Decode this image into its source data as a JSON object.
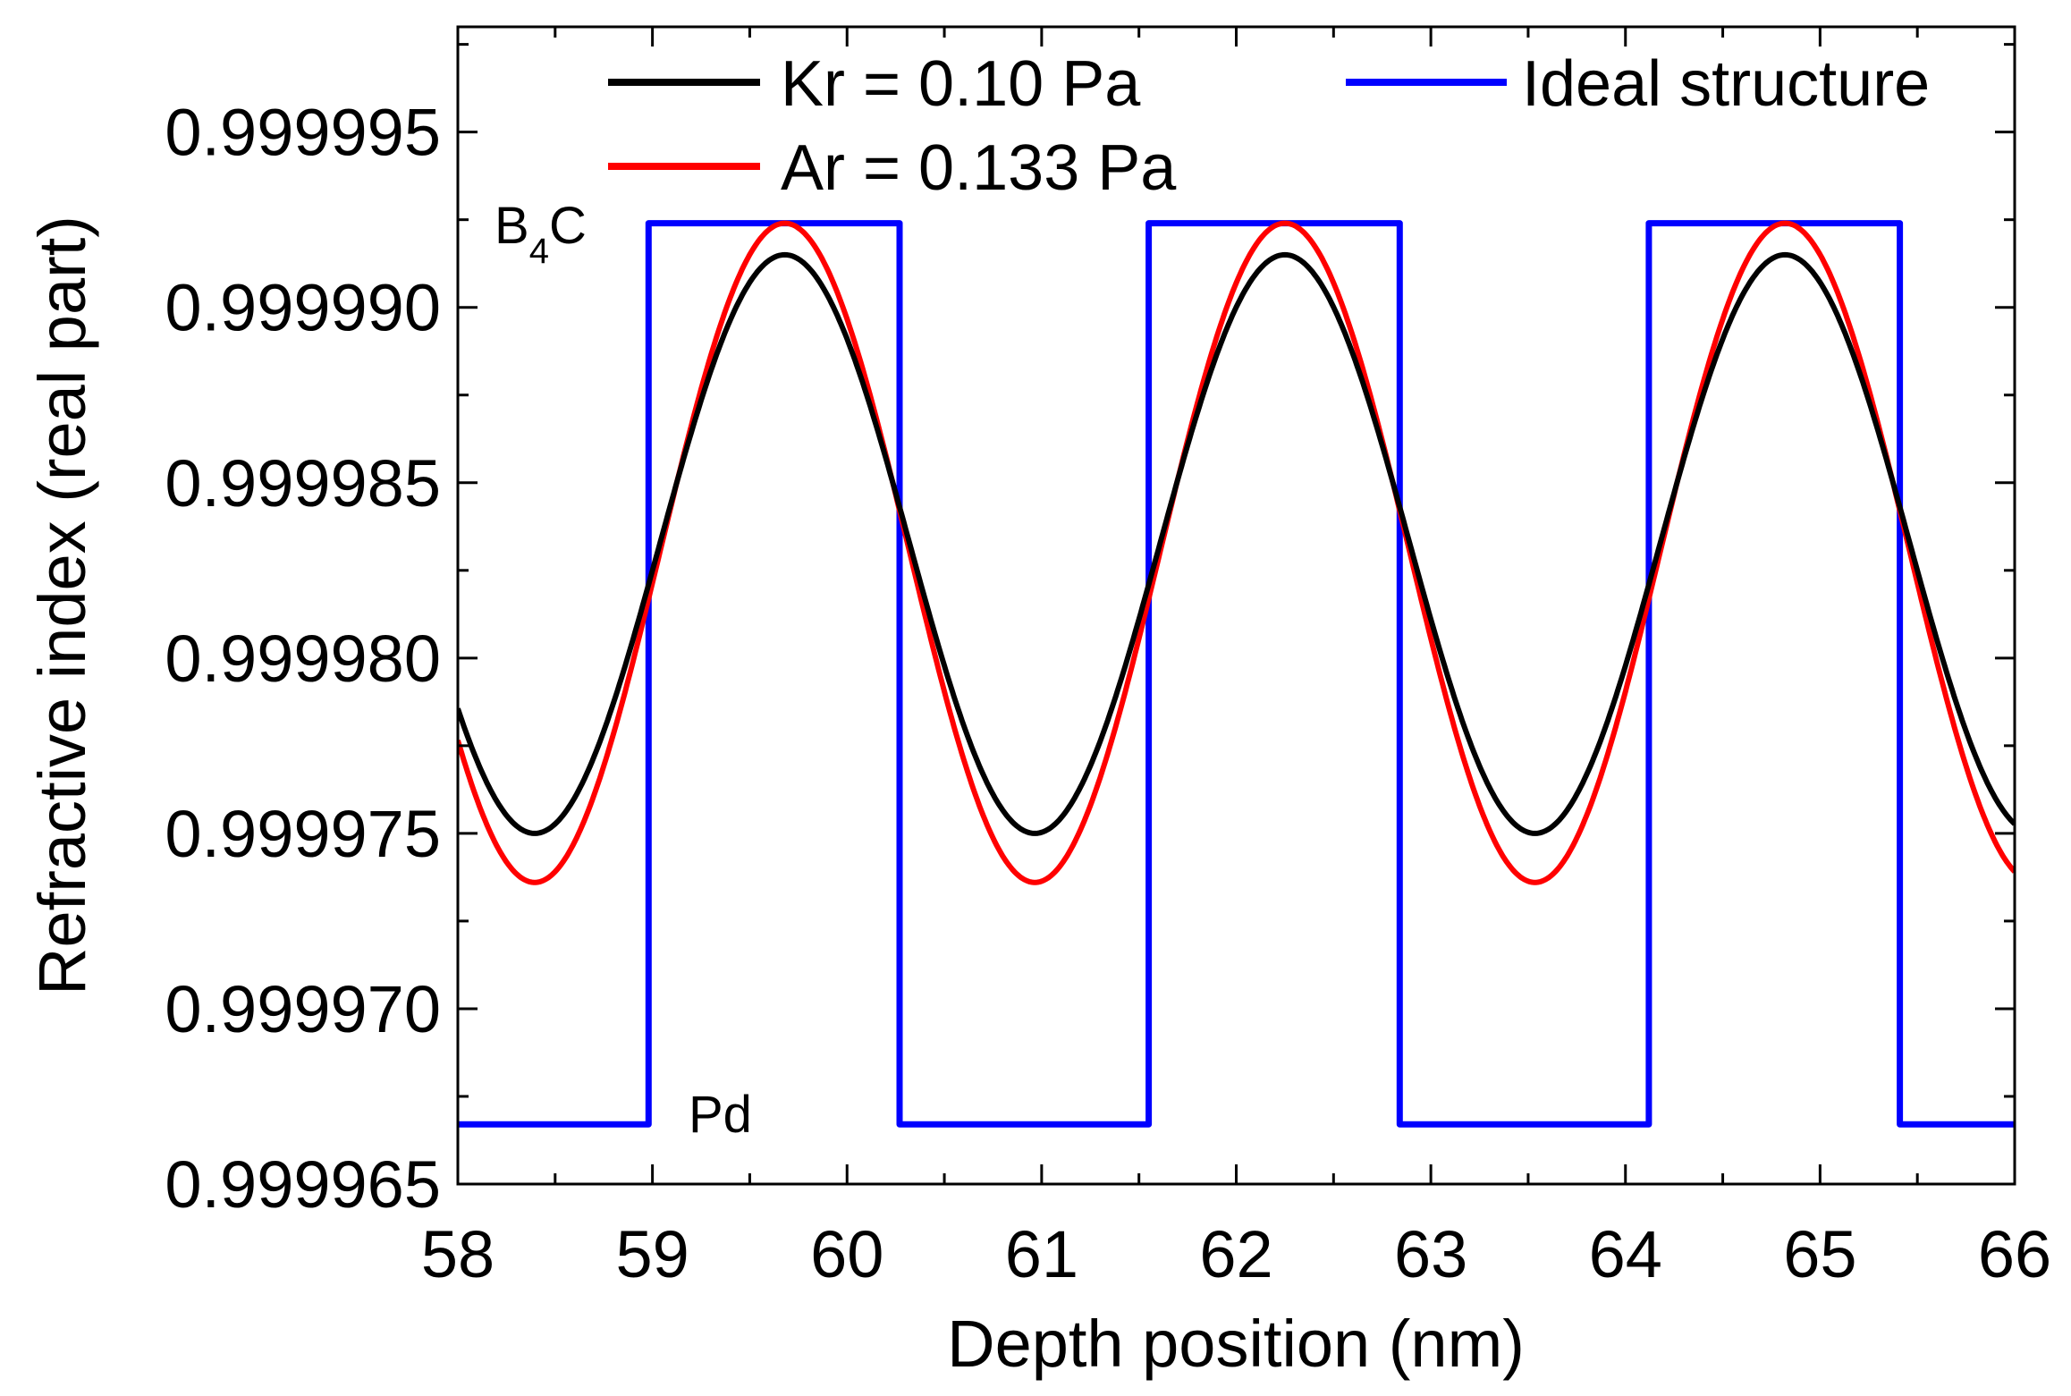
{
  "chart_data": {
    "type": "line",
    "title": "",
    "xlabel": "Depth position (nm)",
    "ylabel": "Refractive index (real part)",
    "xlim": [
      58,
      66
    ],
    "ylim": [
      0.999965,
      0.999998
    ],
    "xticks": [
      58,
      59,
      60,
      61,
      62,
      63,
      64,
      65,
      66
    ],
    "xtick_labels": [
      "58",
      "59",
      "60",
      "61",
      "62",
      "63",
      "64",
      "65",
      "66"
    ],
    "yticks": [
      0.999965,
      0.99997,
      0.999975,
      0.99998,
      0.999985,
      0.99999,
      0.999995
    ],
    "ytick_labels": [
      "0.999965",
      "0.999970",
      "0.999975",
      "0.999980",
      "0.999985",
      "0.999990",
      "0.999995"
    ],
    "grid": false,
    "legend_position": "top",
    "annotations": [
      {
        "text": "B",
        "subscript": "4",
        "suffix": "C",
        "x": 58.2,
        "y": 0.999992,
        "label": "B4C layer"
      },
      {
        "text": "Pd",
        "x": 59.4,
        "y": 0.9999667,
        "label": "Pd layer"
      }
    ],
    "series": [
      {
        "name": "Kr = 0.10 Pa",
        "color": "#000000",
        "kind": "sinusoid",
        "period_nm": 2.57,
        "peak_x": 59.68,
        "max": 0.9999915,
        "min": 0.999975
      },
      {
        "name": "Ar = 0.133 Pa",
        "color": "#ff0000",
        "kind": "sinusoid",
        "period_nm": 2.57,
        "peak_x": 59.68,
        "max": 0.9999924,
        "min": 0.9999736
      },
      {
        "name": "Ideal structure",
        "color": "#0000ff",
        "kind": "step",
        "x": [
          58,
          58.98,
          58.98,
          60.27,
          60.27,
          61.55,
          61.55,
          62.84,
          62.84,
          64.12,
          64.12,
          65.41,
          65.41,
          66
        ],
        "y": [
          0.9999667,
          0.9999667,
          0.9999924,
          0.9999924,
          0.9999667,
          0.9999667,
          0.9999924,
          0.9999924,
          0.9999667,
          0.9999667,
          0.9999924,
          0.9999924,
          0.9999667,
          0.9999667
        ]
      }
    ]
  }
}
